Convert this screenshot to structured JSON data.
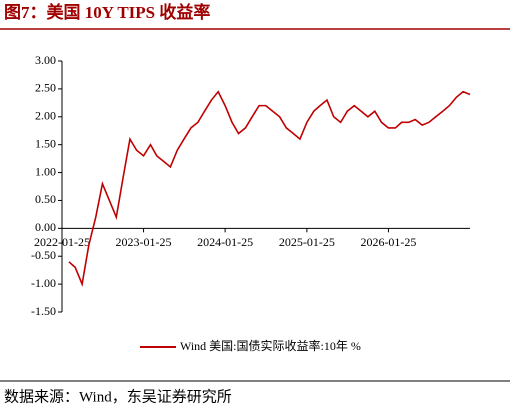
{
  "chart_data": {
    "type": "line",
    "title": "图7：美国 10Y TIPS 收益率",
    "source": "数据来源：Wind，东吴证券研究所",
    "x": [
      "2022-02-25",
      "2022-03-25",
      "2022-04-25",
      "2022-05-25",
      "2022-06-25",
      "2022-07-25",
      "2022-08-25",
      "2022-09-25",
      "2022-10-25",
      "2022-11-25",
      "2022-12-25",
      "2023-01-25",
      "2023-02-25",
      "2023-03-25",
      "2023-04-25",
      "2023-05-25",
      "2023-06-25",
      "2023-07-25",
      "2023-08-25",
      "2023-09-25",
      "2023-10-25",
      "2023-11-25",
      "2023-12-25",
      "2024-01-25",
      "2024-02-25",
      "2024-03-25",
      "2024-04-25",
      "2024-05-25",
      "2024-06-25",
      "2024-07-25",
      "2024-08-25",
      "2024-09-25",
      "2024-10-25",
      "2024-11-25",
      "2024-12-25",
      "2025-01-25",
      "2025-02-25",
      "2025-03-25",
      "2025-04-25",
      "2025-05-25",
      "2025-06-25",
      "2025-07-25",
      "2025-08-25",
      "2025-09-25",
      "2025-10-25",
      "2025-11-25",
      "2025-12-25",
      "2026-01-25",
      "2026-02-25",
      "2026-03-25",
      "2026-04-25",
      "2026-05-25",
      "2026-06-25",
      "2026-07-25",
      "2026-08-25",
      "2026-09-25",
      "2026-10-25",
      "2026-11-25",
      "2026-12-25",
      "2027-01-25"
    ],
    "series": [
      {
        "name": "Wind 美国:国债实际收益率:10年 %",
        "color": "#c00000",
        "values": [
          -0.6,
          -0.7,
          -1.0,
          -0.3,
          0.2,
          0.8,
          0.5,
          0.2,
          0.9,
          1.6,
          1.4,
          1.3,
          1.5,
          1.3,
          1.2,
          1.1,
          1.4,
          1.6,
          1.8,
          1.9,
          2.1,
          2.3,
          2.45,
          2.2,
          1.9,
          1.7,
          1.8,
          2.0,
          2.2,
          2.2,
          2.1,
          2.0,
          1.8,
          1.7,
          1.6,
          1.9,
          2.1,
          2.2,
          2.3,
          2.0,
          1.9,
          2.1,
          2.2,
          2.1,
          2.0,
          2.1,
          1.9,
          1.8,
          1.8,
          1.9,
          1.9,
          1.95,
          1.85,
          1.9,
          2.0,
          2.1,
          2.2,
          2.35,
          2.45,
          2.4
        ]
      }
    ],
    "xlim": [
      "2022-01-25",
      "2027-01-25"
    ],
    "xticks": [
      "2022-01-25",
      "2023-01-25",
      "2024-01-25",
      "2025-01-25",
      "2026-01-25"
    ],
    "ylim": [
      -1.5,
      3
    ],
    "yticks": [
      {
        "value": -1.5,
        "label": "-1.50"
      },
      {
        "value": -1,
        "label": "-1.00"
      },
      {
        "value": -0.5,
        "label": "-0.50"
      },
      {
        "value": 0,
        "label": "0.00"
      },
      {
        "value": 0.5,
        "label": "0.50"
      },
      {
        "value": 1,
        "label": "1.00"
      },
      {
        "value": 1.5,
        "label": "1.50"
      },
      {
        "value": 2,
        "label": "2.00"
      },
      {
        "value": 2.5,
        "label": "2.50"
      },
      {
        "value": 3,
        "label": "3.00"
      }
    ],
    "grid": false
  }
}
